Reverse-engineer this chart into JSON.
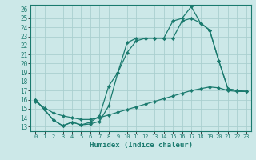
{
  "xlabel": "Humidex (Indice chaleur)",
  "xlim": [
    -0.5,
    23.5
  ],
  "ylim": [
    12.5,
    26.5
  ],
  "xticks": [
    0,
    1,
    2,
    3,
    4,
    5,
    6,
    7,
    8,
    9,
    10,
    11,
    12,
    13,
    14,
    15,
    16,
    17,
    18,
    19,
    20,
    21,
    22,
    23
  ],
  "yticks": [
    13,
    14,
    15,
    16,
    17,
    18,
    19,
    20,
    21,
    22,
    23,
    24,
    25,
    26
  ],
  "bg_color": "#cce8e8",
  "grid_color": "#aacfcf",
  "line_color": "#1a7a6e",
  "line1_x": [
    0,
    1,
    2,
    3,
    4,
    5,
    6,
    7,
    8,
    9,
    10,
    11,
    12,
    13,
    14,
    15,
    16,
    17,
    18,
    19,
    20,
    21,
    22,
    23
  ],
  "line1_y": [
    16.0,
    14.9,
    13.7,
    13.1,
    13.5,
    13.2,
    13.3,
    13.6,
    15.3,
    19.0,
    21.2,
    22.5,
    22.8,
    22.8,
    22.8,
    24.7,
    25.0,
    26.3,
    24.5,
    23.7,
    20.3,
    17.2,
    17.0,
    16.9
  ],
  "line2_x": [
    0,
    2,
    3,
    4,
    5,
    6,
    7,
    8,
    9,
    10,
    11,
    12,
    13,
    14,
    15,
    16,
    17,
    18,
    19,
    20,
    21,
    22,
    23
  ],
  "line2_y": [
    16.0,
    13.7,
    13.1,
    13.5,
    13.2,
    13.5,
    14.2,
    17.5,
    19.0,
    22.3,
    22.8,
    22.8,
    22.8,
    22.8,
    22.8,
    24.7,
    25.0,
    24.5,
    23.7,
    20.3,
    17.2,
    17.0,
    16.9
  ],
  "line3_x": [
    0,
    1,
    2,
    3,
    4,
    5,
    6,
    7,
    8,
    9,
    10,
    11,
    12,
    13,
    14,
    15,
    16,
    17,
    18,
    19,
    20,
    21,
    22,
    23
  ],
  "line3_y": [
    15.8,
    15.1,
    14.5,
    14.2,
    14.0,
    13.8,
    13.8,
    14.0,
    14.3,
    14.6,
    14.9,
    15.2,
    15.5,
    15.8,
    16.1,
    16.4,
    16.7,
    17.0,
    17.2,
    17.4,
    17.3,
    17.0,
    16.9,
    16.9
  ]
}
